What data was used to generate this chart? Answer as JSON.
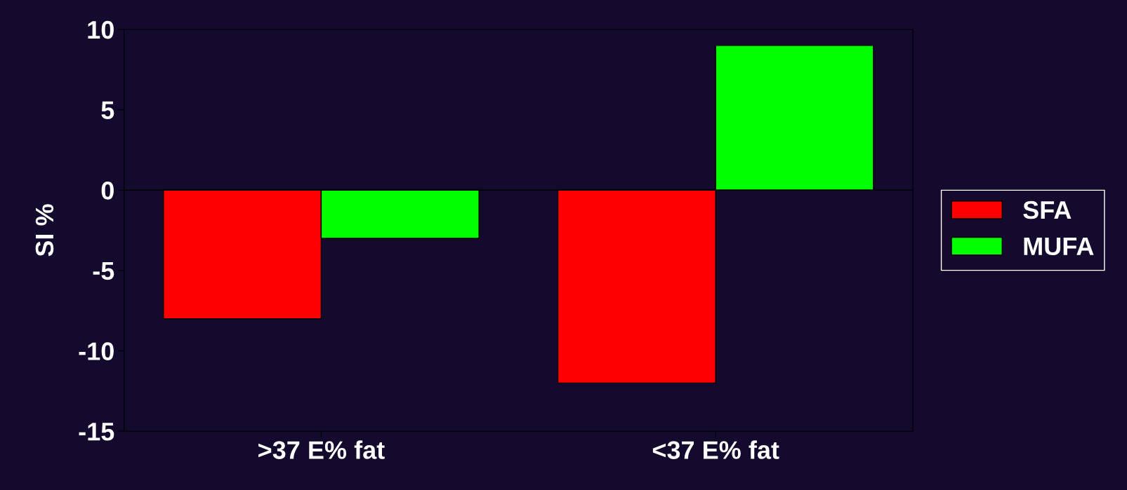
{
  "chart_data": {
    "type": "bar",
    "ylabel": "SI %",
    "categories": [
      ">37 E% fat",
      "<37 E% fat"
    ],
    "series": [
      {
        "name": "SFA",
        "color": "#ff0000",
        "values": [
          -8,
          -12
        ]
      },
      {
        "name": "MUFA",
        "color": "#00ff00",
        "values": [
          -3,
          9
        ]
      }
    ],
    "ref_lines": [
      {
        "axis": "y",
        "value": 0,
        "color": "#000000"
      }
    ],
    "ylim": [
      -15,
      10
    ],
    "yticks": [
      -15,
      -10,
      -5,
      0,
      5,
      10
    ],
    "grid": false,
    "legend": "right"
  }
}
